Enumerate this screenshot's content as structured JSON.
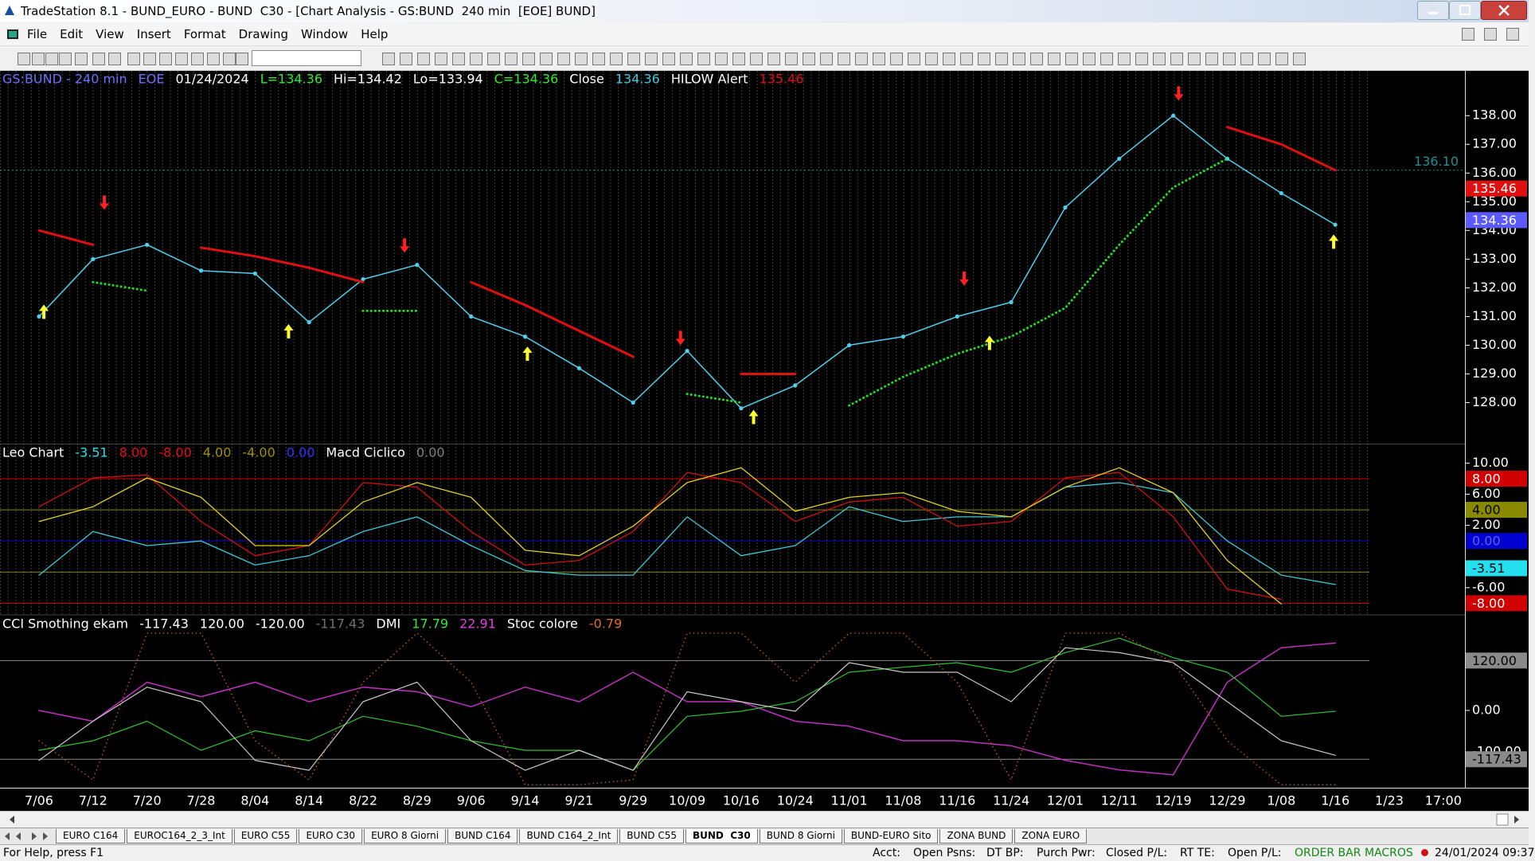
{
  "window": {
    "title": "TradeStation 8.1 - BUND_EURO - BUND  C30 - [Chart Analysis - GS:BUND  240 min  [EOE] BUND]",
    "menu": [
      "File",
      "Edit",
      "View",
      "Insert",
      "Format",
      "Drawing",
      "Window",
      "Help"
    ]
  },
  "chart_data": [
    {
      "type": "line",
      "legend_items": [
        {
          "text": "GS:BUND - 240 min",
          "color": "#6f6fff"
        },
        {
          "text": "EOE",
          "color": "#6f6fff"
        },
        {
          "text": "01/24/2024",
          "color": "#ffffff"
        },
        {
          "text": "L=134.36",
          "color": "#33e833"
        },
        {
          "text": "Hi=134.42",
          "color": "#ffffff"
        },
        {
          "text": "Lo=133.94",
          "color": "#ffffff"
        },
        {
          "text": "C=134.36",
          "color": "#33e833"
        },
        {
          "text": "Close",
          "color": "#ffffff"
        },
        {
          "text": "134.36",
          "color": "#43c7e0"
        },
        {
          "text": "HILOW Alert",
          "color": "#ffffff"
        },
        {
          "text": "135.46",
          "color": "#e01010"
        }
      ],
      "categories": [
        "7/06",
        "7/12",
        "7/20",
        "7/28",
        "8/04",
        "8/14",
        "8/22",
        "8/29",
        "9/06",
        "9/14",
        "9/21",
        "9/29",
        "10/09",
        "10/16",
        "10/24",
        "11/01",
        "11/08",
        "11/16",
        "11/24",
        "12/01",
        "12/11",
        "12/19",
        "12/29",
        "1/08",
        "1/16",
        "1/23",
        "17:00"
      ],
      "ylim": [
        126.57,
        139.56
      ],
      "yticks": [
        {
          "value": 128,
          "label": "128.00"
        },
        {
          "value": 129,
          "label": "129.00"
        },
        {
          "value": 130,
          "label": "130.00"
        },
        {
          "value": 131,
          "label": "131.00"
        },
        {
          "value": 132,
          "label": "132.00"
        },
        {
          "value": 133,
          "label": "133.00"
        },
        {
          "value": 134,
          "label": "134.00"
        },
        {
          "value": 135,
          "label": "135.00"
        },
        {
          "value": 136,
          "label": "136.00"
        },
        {
          "value": 137,
          "label": "137.00"
        },
        {
          "value": 138,
          "label": "138.00"
        }
      ],
      "reference_line": {
        "value": 136.1,
        "label": "136.10",
        "color": "#1f8f8f"
      },
      "levels": [
        {
          "value": 135.46,
          "label": "135.46",
          "color": "#e01010",
          "text_color": "#ffffff",
          "line": false
        },
        {
          "value": 134.36,
          "label": "134.36",
          "color": "#5a5aff",
          "text_color": "#ffffff",
          "line": false
        }
      ],
      "series": [
        {
          "color": "#4fd0ee",
          "width": 1.5,
          "markers": true,
          "values": [
            131.0,
            133.0,
            133.5,
            132.6,
            132.5,
            130.8,
            132.3,
            132.8,
            131.0,
            130.3,
            129.2,
            128.0,
            129.8,
            127.8,
            128.6,
            130.0,
            130.3,
            131.0,
            131.5,
            134.8,
            136.5,
            138.0,
            136.5,
            135.3,
            134.2,
            null,
            null
          ]
        },
        {
          "color": "#e01010",
          "width": 3,
          "values": [
            134.0,
            133.5,
            null,
            133.4,
            133.1,
            132.7,
            132.2,
            null,
            132.2,
            131.4,
            130.5,
            129.6,
            null,
            129.0,
            129.0,
            null,
            null,
            null,
            null,
            null,
            null,
            null,
            137.6,
            137.0,
            136.1,
            null,
            null
          ]
        },
        {
          "color": "#22dd22",
          "width": 3,
          "dotted": true,
          "values": [
            null,
            132.2,
            131.9,
            null,
            null,
            null,
            131.2,
            131.2,
            null,
            null,
            null,
            null,
            128.3,
            128.0,
            null,
            127.9,
            128.9,
            129.7,
            130.3,
            131.3,
            133.5,
            135.5,
            136.5,
            null,
            null,
            null,
            null
          ]
        }
      ]
    },
    {
      "type": "line",
      "legend_items": [
        {
          "text": "Leo Chart",
          "color": "#ffffff"
        },
        {
          "text": "-3.51",
          "color": "#22e0f0"
        },
        {
          "text": "8.00",
          "color": "#e01010"
        },
        {
          "text": "-8.00",
          "color": "#e01010"
        },
        {
          "text": "4.00",
          "color": "#a09000"
        },
        {
          "text": "-4.00",
          "color": "#a09000"
        },
        {
          "text": "0.00",
          "color": "#3030ff"
        },
        {
          "text": "Macd Ciclico",
          "color": "#ffffff"
        },
        {
          "text": "0.00",
          "color": "#808080"
        }
      ],
      "ylim": [
        -9.4,
        12.4
      ],
      "yticks": [
        {
          "value": 10,
          "label": "10.00"
        },
        {
          "value": 6,
          "label": "6.00"
        },
        {
          "value": 2,
          "label": "2.00"
        },
        {
          "value": -6,
          "label": "-6.00"
        }
      ],
      "levels": [
        {
          "value": 8,
          "label": "8.00",
          "color": "#d00000",
          "text_color": "#ffffff",
          "line": true
        },
        {
          "value": 4,
          "label": "4.00",
          "color": "#8a8a00",
          "text_color": "#000000",
          "line": true
        },
        {
          "value": 0,
          "label": "0.00",
          "color": "#0000d0",
          "text_color": "#6060ff",
          "line": true
        },
        {
          "value": -4,
          "color": "#8a8a00",
          "line": true
        },
        {
          "value": -3.51,
          "label": "-3.51",
          "color": "#22e0f0",
          "text_color": "#000000",
          "line": false
        },
        {
          "value": -8,
          "label": "-8.00",
          "color": "#d00000",
          "text_color": "#ffffff",
          "line": true
        }
      ],
      "series": [
        {
          "color": "#3cc8d8",
          "width": 1.3,
          "values": [
            -4.4,
            1.2,
            -0.6,
            0,
            -3.1,
            -1.9,
            1.2,
            3.1,
            -0.6,
            -3.8,
            -4.4,
            -4.4,
            3.1,
            -1.9,
            -0.6,
            4.4,
            2.5,
            3.1,
            3.1,
            6.9,
            7.5,
            6.2,
            0,
            -4.4,
            -5.6,
            null,
            null
          ]
        },
        {
          "color": "#d01010",
          "width": 1.3,
          "values": [
            4.4,
            8.1,
            8.5,
            2.5,
            -1.9,
            -0.6,
            7.5,
            6.9,
            1.2,
            -3.1,
            -2.5,
            1.2,
            8.8,
            7.5,
            2.5,
            5.0,
            5.6,
            1.9,
            2.5,
            8.1,
            8.8,
            3.1,
            -6.2,
            -7.5,
            null,
            null,
            null
          ]
        },
        {
          "color": "#e0d020",
          "width": 1.3,
          "values": [
            2.5,
            4.4,
            8.1,
            5.6,
            -0.6,
            -0.6,
            5.0,
            7.5,
            5.6,
            -1.2,
            -1.9,
            1.9,
            7.5,
            9.4,
            3.8,
            5.6,
            6.2,
            3.8,
            3.1,
            6.9,
            9.4,
            6.2,
            -2.5,
            -8.1,
            null,
            null,
            null
          ]
        }
      ]
    },
    {
      "type": "line",
      "legend_items": [
        {
          "text": "CCI Smothing ekam",
          "color": "#ffffff"
        },
        {
          "text": "-117.43",
          "color": "#ffffff"
        },
        {
          "text": "120.00",
          "color": "#ffffff"
        },
        {
          "text": "-120.00",
          "color": "#ffffff"
        },
        {
          "text": "-117.43",
          "color": "#707070"
        },
        {
          "text": "DMI",
          "color": "#ffffff"
        },
        {
          "text": "17.79",
          "color": "#33e833"
        },
        {
          "text": "22.91",
          "color": "#e040e0"
        },
        {
          "text": "Stoc colore",
          "color": "#ffffff"
        },
        {
          "text": "-0.79",
          "color": "#e07020"
        }
      ],
      "ylim": [
        -186,
        228
      ],
      "yticks": [
        {
          "value": 0,
          "label": "0.00"
        },
        {
          "value": -100,
          "label": "-100.00"
        }
      ],
      "levels": [
        {
          "value": 120,
          "label": "120.00",
          "color": "#8a8a8a",
          "text_color": "#000000",
          "line": true
        },
        {
          "value": -117.43,
          "label": "-117.43",
          "color": "#8a8a8a",
          "text_color": "#000000",
          "line": true
        }
      ],
      "series": [
        {
          "color": "#c030c0",
          "width": 1.5,
          "values": [
            0,
            -26,
            68,
            33,
            68,
            21,
            56,
            45,
            9,
            56,
            21,
            92,
            21,
            21,
            -26,
            -38,
            -73,
            -73,
            -85,
            -120,
            -143,
            -155,
            68,
            151,
            162,
            null,
            null
          ]
        },
        {
          "color": "#30c030",
          "width": 1.2,
          "values": [
            -96,
            -73,
            -26,
            -96,
            -49,
            -73,
            -14,
            -38,
            -73,
            -96,
            -96,
            -144,
            -14,
            -2,
            21,
            92,
            104,
            115,
            92,
            139,
            174,
            127,
            92,
            -14,
            -2,
            null,
            null
          ]
        },
        {
          "color": "#c8c8c8",
          "width": 1.2,
          "values": [
            -120,
            -26,
            56,
            21,
            -120,
            -144,
            21,
            68,
            -73,
            -144,
            -96,
            -144,
            45,
            21,
            -2,
            115,
            92,
            92,
            21,
            151,
            139,
            115,
            21,
            -73,
            -108,
            null,
            null
          ]
        },
        {
          "color": "#d06010",
          "width": 1.5,
          "dotted": true,
          "values": [
            -73,
            -167,
            186,
            186,
            -73,
            -167,
            68,
            186,
            68,
            -179,
            -179,
            -167,
            186,
            186,
            68,
            186,
            186,
            68,
            -167,
            186,
            186,
            115,
            -73,
            -179,
            -179,
            null,
            null
          ]
        }
      ]
    }
  ],
  "tabs": [
    "EURO C164",
    "EUROC164_2_3_Int",
    "EURO C55",
    "EURO C30",
    "EURO 8 Giorni",
    "BUND C164",
    "BUND C164_2_Int",
    "BUND C55",
    "BUND  C30",
    "BUND 8 Giorni",
    "BUND-EURO Sito",
    "ZONA BUND",
    "ZONA EURO"
  ],
  "active_tab": 8,
  "status": {
    "help": "For Help, press F1",
    "fields": [
      {
        "text": "Acct:",
        "color": "#000000"
      },
      {
        "text": "Open Psns:",
        "color": "#000000"
      },
      {
        "text": "DT BP:",
        "color": "#000000"
      },
      {
        "text": "Purch Pwr:",
        "color": "#000000"
      },
      {
        "text": "Closed P/L:",
        "color": "#000000"
      },
      {
        "text": "RT TE:",
        "color": "#000000"
      },
      {
        "text": "Open P/L:",
        "color": "#000000"
      },
      {
        "text": "ORDER BAR",
        "color": "#118811"
      },
      {
        "text": "MACROS",
        "color": "#118811"
      },
      {
        "text": "24/01/2024 09:37",
        "color": "#000000"
      }
    ]
  }
}
